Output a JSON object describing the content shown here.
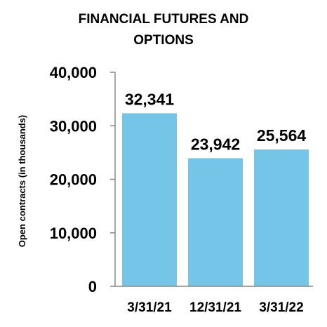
{
  "chart_data": {
    "type": "bar",
    "title_lines": [
      "FINANCIAL FUTURES AND",
      "OPTIONS"
    ],
    "xlabel": "",
    "ylabel": "Open contracts (in thousands)",
    "categories": [
      "3/31/21",
      "12/31/21",
      "3/31/22"
    ],
    "values": [
      32341,
      23942,
      25564
    ],
    "value_labels": [
      "32,341",
      "23,942",
      "25,564"
    ],
    "ylim": [
      0,
      40000
    ],
    "yticks": [
      0,
      10000,
      20000,
      30000,
      40000
    ],
    "ytick_labels": [
      "0",
      "10,000",
      "20,000",
      "30,000",
      "40,000"
    ],
    "grid": false,
    "bar_color": "#74C5E8",
    "axis_color": "#888888"
  }
}
